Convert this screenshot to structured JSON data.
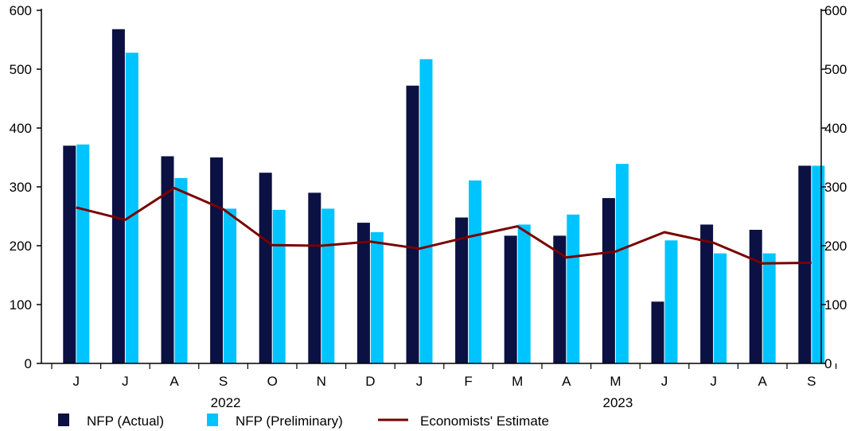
{
  "colors": {
    "actual": "#0b1142",
    "preliminary": "#00c4ff",
    "estimate": "#7a0000",
    "axis": "#000000"
  },
  "chart_data": {
    "type": "bar",
    "categories": [
      "J",
      "J",
      "A",
      "S",
      "O",
      "N",
      "D",
      "J",
      "F",
      "M",
      "A",
      "M",
      "J",
      "J",
      "A",
      "S"
    ],
    "year_labels": [
      {
        "label": "2022",
        "category_index": 3
      },
      {
        "label": "2023",
        "category_index": 11
      }
    ],
    "series": [
      {
        "name": "NFP (Actual)",
        "type": "bar",
        "values": [
          370,
          568,
          352,
          350,
          324,
          290,
          239,
          472,
          248,
          217,
          217,
          281,
          105,
          236,
          227,
          336
        ]
      },
      {
        "name": "NFP (Preliminary)",
        "type": "bar",
        "values": [
          372,
          528,
          315,
          263,
          261,
          263,
          223,
          517,
          311,
          236,
          253,
          339,
          209,
          187,
          187,
          336
        ]
      },
      {
        "name": "Economists' Estimate",
        "type": "line",
        "values": [
          265,
          244,
          298,
          262,
          201,
          200,
          207,
          195,
          215,
          233,
          180,
          190,
          223,
          205,
          170,
          171
        ]
      }
    ],
    "ylim": [
      0,
      600
    ],
    "y_ticks": [
      0,
      100,
      200,
      300,
      400,
      500,
      600
    ],
    "y_ticks_right": [
      0,
      100,
      200,
      300,
      400,
      500,
      600
    ],
    "legend_position": "bottom",
    "grid": false
  }
}
